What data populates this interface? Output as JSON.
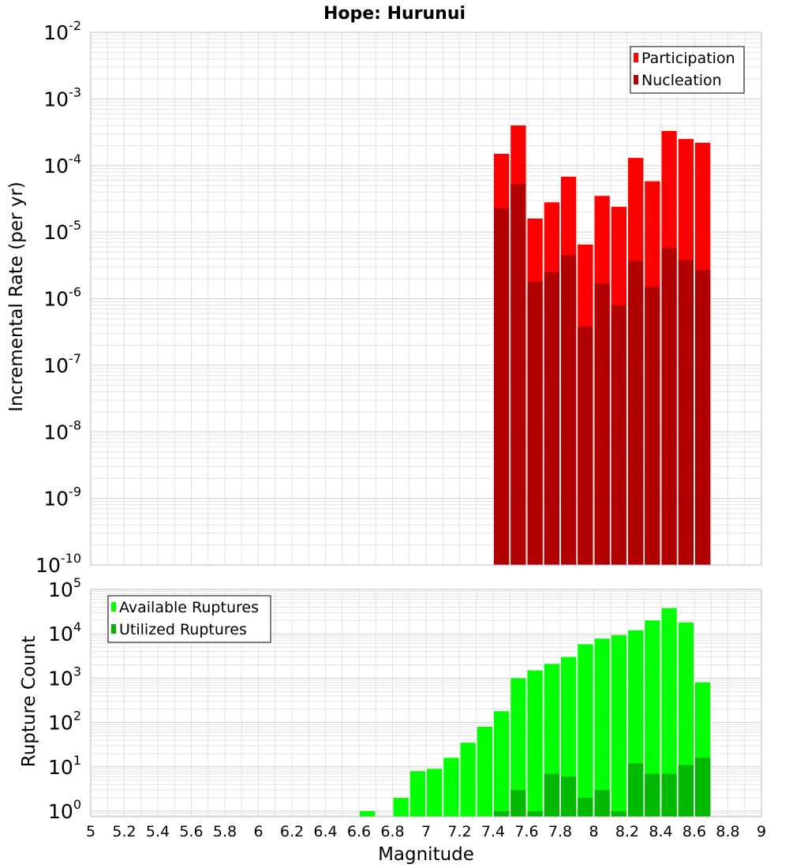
{
  "title": "Hope: Hurunui",
  "xlabel": "Magnitude",
  "x_tick_labels": [
    "5",
    "5.2",
    "5.4",
    "5.6",
    "5.8",
    "6",
    "6.2",
    "6.4",
    "6.6",
    "6.8",
    "7",
    "7.2",
    "7.4",
    "7.6",
    "7.8",
    "8",
    "8.2",
    "8.4",
    "8.6",
    "8.8",
    "9"
  ],
  "colors": {
    "participation": "#ff0000",
    "nucleation": "#b00000",
    "available": "#00ff00",
    "utilized": "#00b800",
    "grid": "#e3e3e3",
    "frame": "#b8b8b8"
  },
  "chart_data": [
    {
      "type": "bar",
      "panel": "top",
      "ylabel": "Incremental Rate (per yr)",
      "yscale": "log",
      "ylim": [
        1e-10,
        0.01
      ],
      "xlim": [
        5,
        9
      ],
      "y_tick_exponents": [
        "-10",
        "-9",
        "-8",
        "-7",
        "-6",
        "-5",
        "-4",
        "-3",
        "-2"
      ],
      "legend_position": "top-right",
      "x": [
        7.45,
        7.55,
        7.65,
        7.75,
        7.85,
        7.95,
        8.05,
        8.15,
        8.25,
        8.35,
        8.45,
        8.55,
        8.65
      ],
      "series": [
        {
          "name": "Participation",
          "values": [
            0.00015,
            0.0004,
            1.6e-05,
            2.8e-05,
            6.8e-05,
            6.5e-06,
            3.5e-05,
            2.4e-05,
            0.00013,
            5.8e-05,
            0.00033,
            0.00025,
            0.00022
          ]
        },
        {
          "name": "Nucleation",
          "values": [
            2.3e-05,
            5.3e-05,
            1.8e-06,
            2.5e-06,
            4.5e-06,
            3.8e-07,
            1.7e-06,
            8e-07,
            3.7e-06,
            1.5e-06,
            5.8e-06,
            3.8e-06,
            2.7e-06
          ]
        }
      ]
    },
    {
      "type": "bar",
      "panel": "bottom",
      "ylabel": "Rupture Count",
      "yscale": "log",
      "ylim": [
        0.75,
        100000.0
      ],
      "xlim": [
        5,
        9
      ],
      "y_tick_exponents": [
        "0",
        "1",
        "2",
        "3",
        "4",
        "5"
      ],
      "legend_position": "top-left",
      "x": [
        6.65,
        6.75,
        6.85,
        6.95,
        7.05,
        7.15,
        7.25,
        7.35,
        7.45,
        7.55,
        7.65,
        7.75,
        7.85,
        7.95,
        8.05,
        8.15,
        8.25,
        8.35,
        8.45,
        8.55,
        8.65
      ],
      "series": [
        {
          "name": "Available Ruptures",
          "values": [
            1,
            0,
            2,
            8,
            9,
            16,
            35,
            80,
            180,
            1000,
            1500,
            2100,
            3000,
            5800,
            7800,
            9300,
            12000,
            20000,
            38000,
            18000,
            800
          ]
        },
        {
          "name": "Utilized Ruptures",
          "values": [
            0,
            0,
            0,
            0,
            0,
            0,
            0,
            0,
            1,
            3,
            1,
            7,
            6,
            2,
            3,
            1,
            12,
            7,
            7,
            11,
            16
          ]
        }
      ]
    }
  ]
}
